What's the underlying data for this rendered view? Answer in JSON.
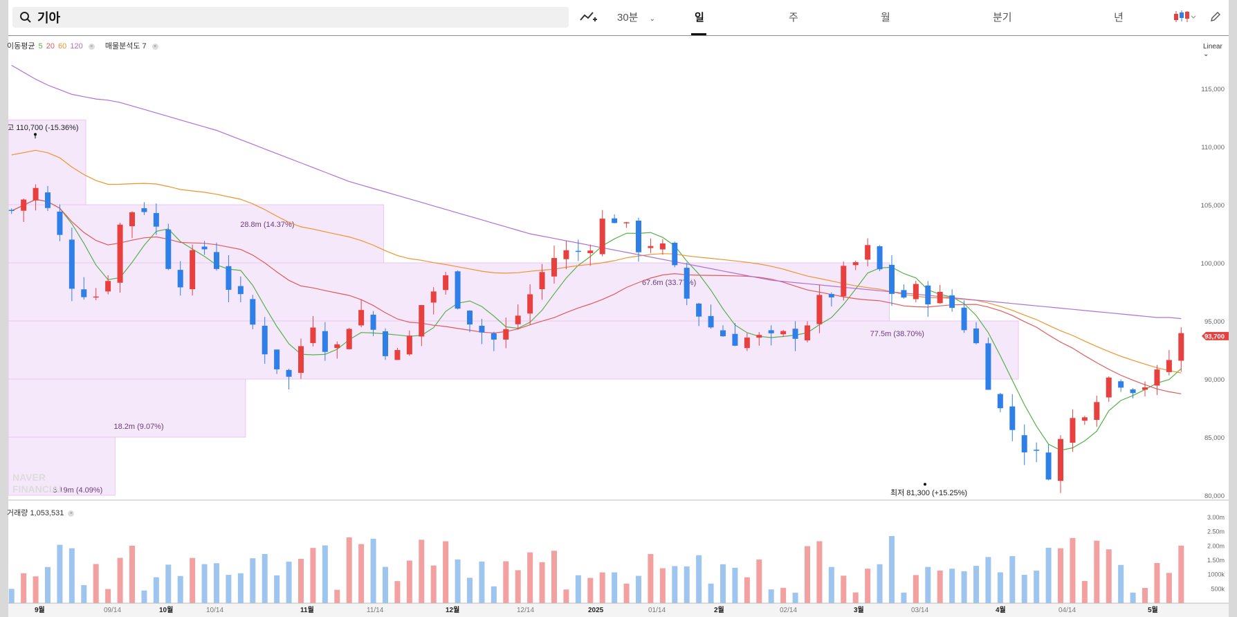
{
  "search": {
    "query": "기아"
  },
  "toolbar": {
    "chart_type_icon": "line-chart-icon",
    "interval_label": "30분",
    "tabs": [
      "일",
      "주",
      "월",
      "분기",
      "년"
    ],
    "active_tab": "일",
    "candle_icon": "candlestick-icon",
    "draw_icon": "pencil-icon"
  },
  "legend": {
    "ma_label": "이동평균",
    "ma_periods": [
      "5",
      "20",
      "60",
      "120"
    ],
    "ma_colors": [
      "#56b04a",
      "#e05a5a",
      "#f0932b",
      "#b06fd8"
    ],
    "vp_label": "매물분석도 7",
    "scale_label": "Linear"
  },
  "volume_legend": {
    "label": "거래량",
    "value": "1,053,531"
  },
  "colors": {
    "up": "#e8403f",
    "down": "#2f7fe8",
    "vol_up": "#f2a0a0",
    "vol_down": "#9ec5f0",
    "vp_fill": "#f6e8fb",
    "vp_stroke": "#e9c6f2",
    "price_tag": "#e8403f",
    "text_purple": "#6a3a7a"
  },
  "watermark": [
    "NAVER",
    "FINANCIAL"
  ],
  "chart_data": {
    "type": "candlestick",
    "symbol": "기아",
    "period": "일",
    "y_axis": {
      "min": 80000,
      "max": 120000,
      "ticks": [
        80000,
        85000,
        90000,
        95000,
        100000,
        105000,
        110000,
        115000
      ],
      "tick_labels": [
        "80,000",
        "85,000",
        "90,000",
        "95,000",
        "100,000",
        "105,000",
        "110,000",
        "115,000"
      ]
    },
    "current_price": {
      "value": 93700,
      "label": "93,700"
    },
    "high_annotation": {
      "prefix": "최고",
      "value": "110,700",
      "change": "(-15.36%)",
      "price": 110700
    },
    "low_annotation": {
      "prefix": "최저",
      "value": "81,300",
      "change": "(+15.25%)",
      "price": 81300
    },
    "x_labels": [
      "9월",
      "09/14",
      "10월",
      "10/14",
      "11월",
      "11/14",
      "12월",
      "12/14",
      "2025",
      "01/14",
      "2월",
      "02/14",
      "3월",
      "03/14",
      "4월",
      "04/14",
      "5월"
    ],
    "x_label_bold": [
      "9월",
      "10월",
      "11월",
      "12월",
      "2025",
      "2월",
      "3월",
      "4월",
      "5월"
    ],
    "volume_axis": {
      "ticks": [
        500000,
        1000000,
        1500000,
        2000000,
        2500000,
        3000000
      ],
      "tick_labels": [
        "500k",
        "1000k",
        "1.50m",
        "2.00m",
        "2.50m",
        "3.00m"
      ]
    },
    "volume_profile": [
      {
        "price_low": 80000,
        "price_high": 85000,
        "label": "8.19m (4.09%)",
        "volume_m": 8.19
      },
      {
        "price_low": 85000,
        "price_high": 90000,
        "label": "18.2m (9.07%)",
        "volume_m": 18.2
      },
      {
        "price_low": 90000,
        "price_high": 95000,
        "label": "77.5m (38.70%)",
        "volume_m": 77.5
      },
      {
        "price_low": 95000,
        "price_high": 100000,
        "label": "67.6m (33.77%)",
        "volume_m": 67.6
      },
      {
        "price_low": 100000,
        "price_high": 105000,
        "label": "28.8m (14.37%)",
        "volume_m": 28.8
      },
      {
        "price_low": 105000,
        "price_high": 110000,
        "label": "",
        "volume_m": 0
      },
      {
        "price_low": 110000,
        "price_high": 115000,
        "label": "",
        "volume_m": 0
      }
    ],
    "ma_120": [
      117000,
      116400,
      115800,
      115300,
      114900,
      114500,
      114300,
      114100,
      114000,
      113800,
      113500,
      113200,
      112900,
      112600,
      112300,
      112000,
      111700,
      111400,
      111000,
      110600,
      110200,
      109800,
      109400,
      109000,
      108600,
      108200,
      107800,
      107400,
      107000,
      106700,
      106400,
      106100,
      105800,
      105500,
      105200,
      104900,
      104600,
      104300,
      104000,
      103700,
      103400,
      103100,
      102800,
      102500,
      102300,
      102100,
      101900,
      101700,
      101500,
      101300,
      101100,
      100900,
      100700,
      100500,
      100300,
      100100,
      99900,
      99700,
      99500,
      99300,
      99100,
      98900,
      98700,
      98500,
      98400,
      98300,
      98200,
      98100,
      98000,
      97900,
      97800,
      97700,
      97600,
      97500,
      97400,
      97300,
      97200,
      97100,
      97000,
      96900,
      96800,
      96700,
      96600,
      96500,
      96400,
      96300,
      96200,
      96100,
      96000,
      95900,
      95800,
      95700,
      95600,
      95500,
      95400,
      95300,
      95300,
      95200
    ]
  }
}
